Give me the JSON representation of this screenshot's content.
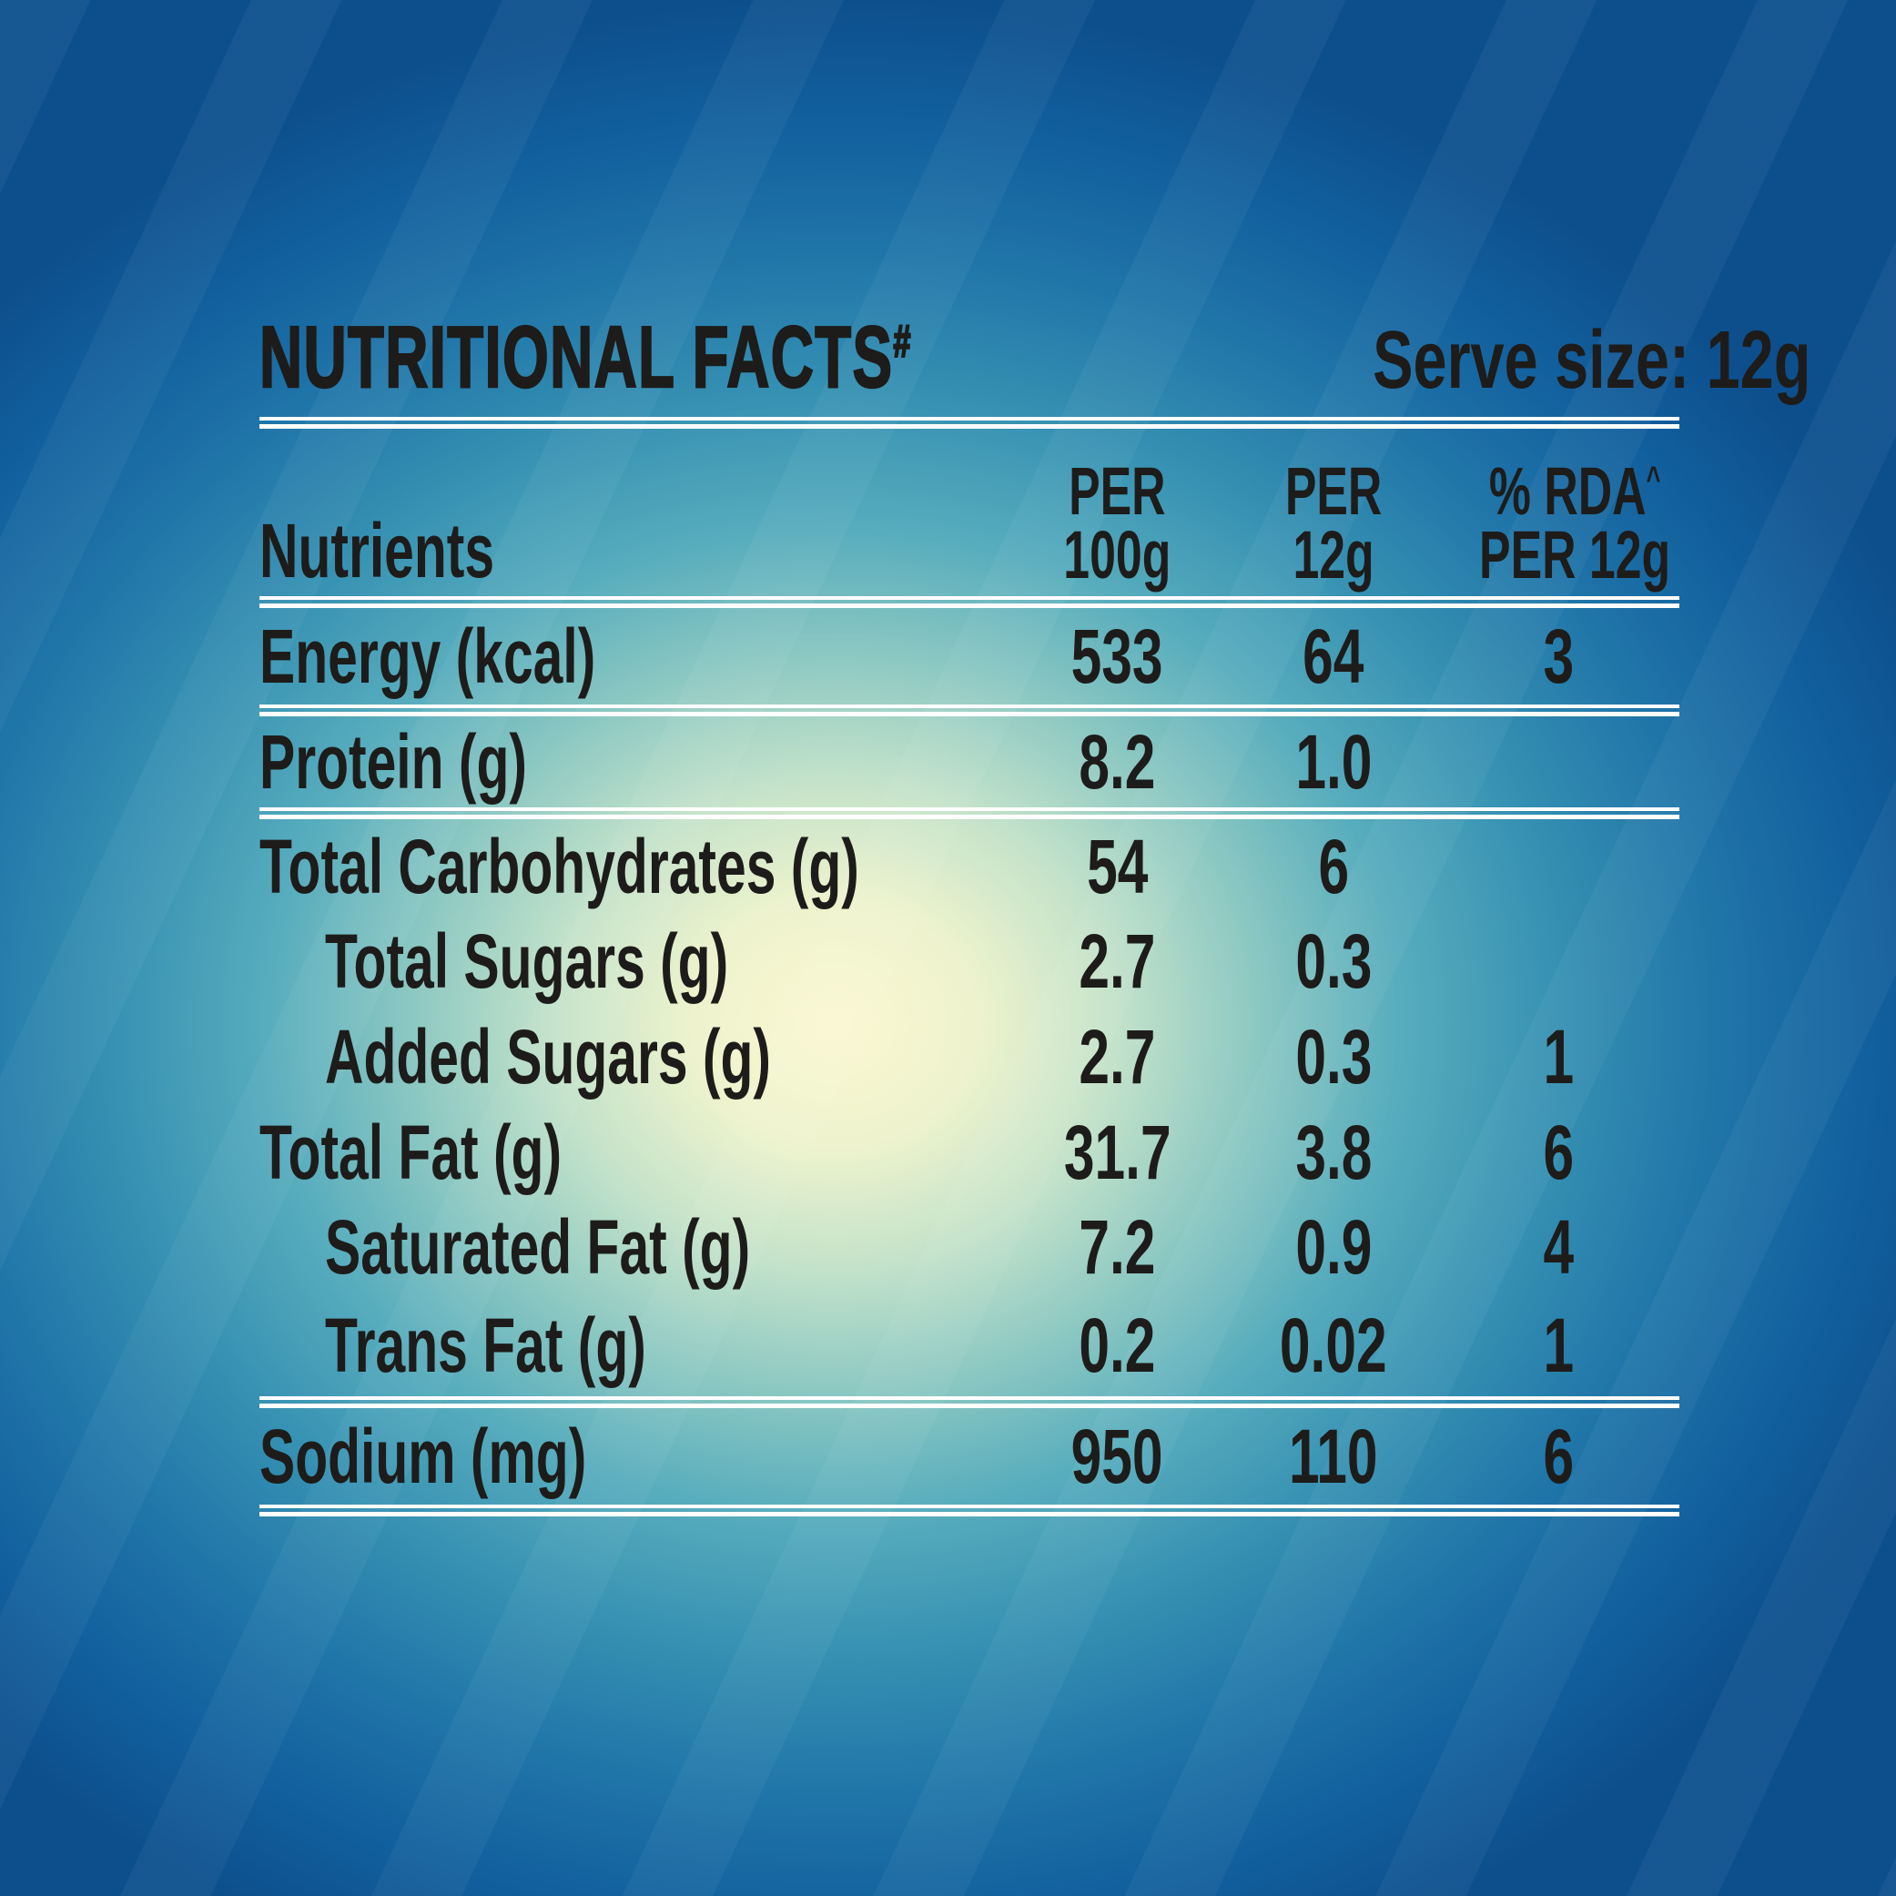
{
  "title": {
    "text": "NUTRITIONAL FACTS",
    "sup": "#"
  },
  "serve_size": "Serve size: 12g",
  "table": {
    "headers": {
      "nutrients": "Nutrients",
      "col_per100": {
        "line1": "PER",
        "line2": "100g"
      },
      "col_per12": {
        "line1": "PER",
        "line2": "12g"
      },
      "col_rda": {
        "line1": "% RDA",
        "sup": "^",
        "line2": "PER 12g"
      }
    },
    "rows": [
      {
        "label": "Energy (kcal)",
        "indent": false,
        "per_100g": "533",
        "per_12g": "64",
        "rda_pct": "3"
      },
      {
        "label": "Protein (g)",
        "indent": false,
        "per_100g": "8.2",
        "per_12g": "1.0",
        "rda_pct": ""
      },
      {
        "label": "Total Carbohydrates (g)",
        "indent": false,
        "per_100g": "54",
        "per_12g": "6",
        "rda_pct": ""
      },
      {
        "label": "Total Sugars (g)",
        "indent": true,
        "per_100g": "2.7",
        "per_12g": "0.3",
        "rda_pct": ""
      },
      {
        "label": "Added Sugars (g)",
        "indent": true,
        "per_100g": "2.7",
        "per_12g": "0.3",
        "rda_pct": "1"
      },
      {
        "label": "Total Fat (g)",
        "indent": false,
        "per_100g": "31.7",
        "per_12g": "3.8",
        "rda_pct": "6"
      },
      {
        "label": "Saturated Fat (g)",
        "indent": true,
        "per_100g": "7.2",
        "per_12g": "0.9",
        "rda_pct": "4"
      },
      {
        "label": "Trans Fat (g)",
        "indent": true,
        "per_100g": "0.2",
        "per_12g": "0.02",
        "rda_pct": "1"
      },
      {
        "label": "Sodium (mg)",
        "indent": false,
        "per_100g": "950",
        "per_12g": "110",
        "rda_pct": "6"
      }
    ]
  },
  "colors": {
    "background_deep_blue": "#0d4f8d",
    "background_teal": "#3590b2",
    "glow_cream": "#fbf8d2",
    "text": "#1d1c1a",
    "separator": "#ffffff"
  }
}
